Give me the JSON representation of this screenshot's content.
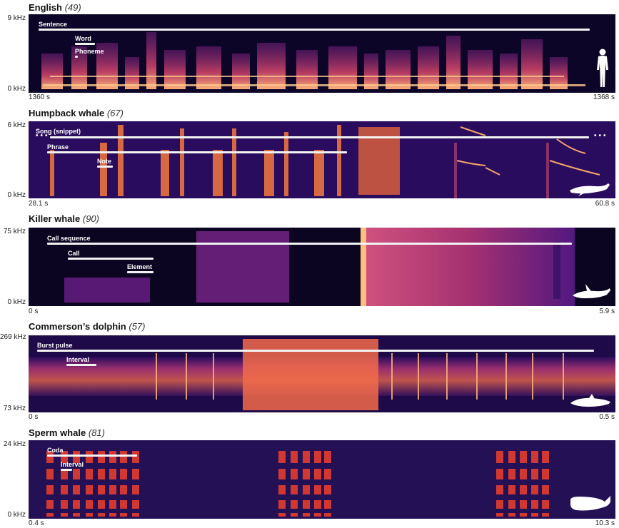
{
  "colors": {
    "bg": "#1c0a4a",
    "low": "#3b0f70",
    "mid": "#b73779",
    "high": "#fc8961",
    "peak": "#fcfdbf"
  },
  "panels": [
    {
      "title": "English",
      "count": "(49)",
      "ymax": "9 kHz",
      "ymin": "0 kHz",
      "xstart": "1360 s",
      "xend": "1368 s",
      "bars": [
        "Sentence",
        "Word",
        "Phoneme"
      ],
      "icon": "human-figure-icon"
    },
    {
      "title": "Humpback whale",
      "count": "(67)",
      "ymax": "6 kHz",
      "ymin": "0 kHz",
      "xstart": "28.1 s",
      "xend": "60.8 s",
      "bars": [
        "Song (snippet)",
        "Phrase",
        "Note"
      ],
      "icon": "humpback-whale-icon"
    },
    {
      "title": "Killer whale",
      "count": "(90)",
      "ymax": "75 kHz",
      "ymin": "0 kHz",
      "xstart": "0 s",
      "xend": "5.9 s",
      "bars": [
        "Call sequence",
        "Call",
        "Element"
      ],
      "icon": "killer-whale-icon"
    },
    {
      "title": "Commerson’s dolphin",
      "count": "(57)",
      "ymax": "269 kHz",
      "ymin": "73 kHz",
      "xstart": "0 s",
      "xend": "0.5 s",
      "bars": [
        "Burst pulse",
        "Interval"
      ],
      "icon": "dolphin-icon"
    },
    {
      "title": "Sperm whale",
      "count": "(81)",
      "ymax": "24 kHz",
      "ymin": "0 kHz",
      "xstart": "0.4 s",
      "xend": "10.3 s",
      "bars": [
        "Coda",
        "Interval"
      ],
      "icon": "sperm-whale-icon"
    }
  ]
}
